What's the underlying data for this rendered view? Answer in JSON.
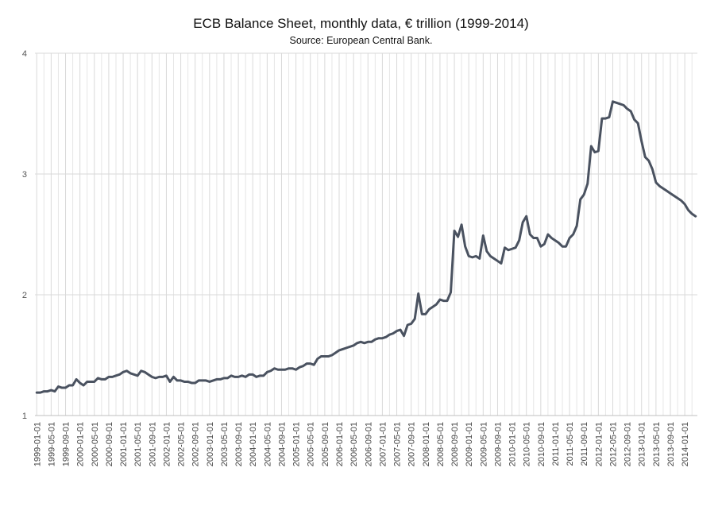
{
  "title": "ECB Balance Sheet, monthly data, € trillion  (1999-2014)",
  "subtitle": "Source: European Central Bank.",
  "chart_data": {
    "type": "line",
    "title": "ECB Balance Sheet, monthly data, € trillion  (1999-2014)",
    "subtitle": "Source: European Central Bank.",
    "xlabel": "",
    "ylabel": "",
    "ylim": [
      1,
      4
    ],
    "yticks": [
      1,
      2,
      3,
      4
    ],
    "grid": true,
    "line_color": "#4a5260",
    "xticks": [
      "1999-01-01",
      "1999-05-01",
      "1999-09-01",
      "2000-01-01",
      "2000-05-01",
      "2000-09-01",
      "2001-01-01",
      "2001-05-01",
      "2001-09-01",
      "2002-01-01",
      "2002-05-01",
      "2002-09-01",
      "2003-01-01",
      "2003-05-01",
      "2003-09-01",
      "2004-01-01",
      "2004-05-01",
      "2004-09-01",
      "2005-01-01",
      "2005-05-01",
      "2005-09-01",
      "2006-01-01",
      "2006-05-01",
      "2006-09-01",
      "2007-01-01",
      "2007-05-01",
      "2007-09-01",
      "2008-01-01",
      "2008-05-01",
      "2008-09-01",
      "2009-01-01",
      "2009-05-01",
      "2009-09-01",
      "2010-01-01",
      "2010-05-01",
      "2010-09-01",
      "2011-01-01",
      "2011-05-01",
      "2011-09-01",
      "2012-01-01",
      "2012-05-01",
      "2012-09-01",
      "2013-01-01",
      "2013-05-01",
      "2013-09-01",
      "2014-01-01"
    ],
    "series": [
      {
        "x_start": "1999-01-01",
        "frequency": "monthly",
        "values": [
          1.19,
          1.19,
          1.2,
          1.2,
          1.21,
          1.2,
          1.24,
          1.23,
          1.23,
          1.25,
          1.25,
          1.3,
          1.27,
          1.25,
          1.28,
          1.28,
          1.28,
          1.31,
          1.3,
          1.3,
          1.32,
          1.32,
          1.33,
          1.34,
          1.36,
          1.37,
          1.35,
          1.34,
          1.33,
          1.37,
          1.36,
          1.34,
          1.32,
          1.31,
          1.32,
          1.32,
          1.33,
          1.28,
          1.32,
          1.29,
          1.29,
          1.28,
          1.28,
          1.27,
          1.27,
          1.29,
          1.29,
          1.29,
          1.28,
          1.29,
          1.3,
          1.3,
          1.31,
          1.31,
          1.33,
          1.32,
          1.32,
          1.33,
          1.32,
          1.34,
          1.34,
          1.32,
          1.33,
          1.33,
          1.36,
          1.37,
          1.39,
          1.38,
          1.38,
          1.38,
          1.39,
          1.39,
          1.38,
          1.4,
          1.41,
          1.43,
          1.43,
          1.42,
          1.47,
          1.49,
          1.49,
          1.49,
          1.5,
          1.52,
          1.54,
          1.55,
          1.56,
          1.57,
          1.58,
          1.6,
          1.61,
          1.6,
          1.61,
          1.61,
          1.63,
          1.64,
          1.64,
          1.65,
          1.67,
          1.68,
          1.7,
          1.71,
          1.66,
          1.75,
          1.76,
          1.8,
          2.01,
          1.84,
          1.84,
          1.88,
          1.9,
          1.92,
          1.96,
          1.95,
          1.95,
          2.02,
          2.53,
          2.48,
          2.58,
          2.4,
          2.32,
          2.31,
          2.32,
          2.3,
          2.49,
          2.36,
          2.32,
          2.3,
          2.28,
          2.26,
          2.39,
          2.37,
          2.38,
          2.39,
          2.45,
          2.6,
          2.65,
          2.5,
          2.47,
          2.47,
          2.4,
          2.42,
          2.5,
          2.47,
          2.45,
          2.43,
          2.4,
          2.4,
          2.47,
          2.5,
          2.57,
          2.79,
          2.83,
          2.92,
          3.23,
          3.18,
          3.19,
          3.46,
          3.46,
          3.47,
          3.6,
          3.59,
          3.58,
          3.57,
          3.54,
          3.52,
          3.45,
          3.42,
          3.27,
          3.14,
          3.11,
          3.04,
          2.93,
          2.9,
          2.88,
          2.86,
          2.84,
          2.82,
          2.8,
          2.78,
          2.75,
          2.7,
          2.67,
          2.65
        ]
      }
    ]
  }
}
